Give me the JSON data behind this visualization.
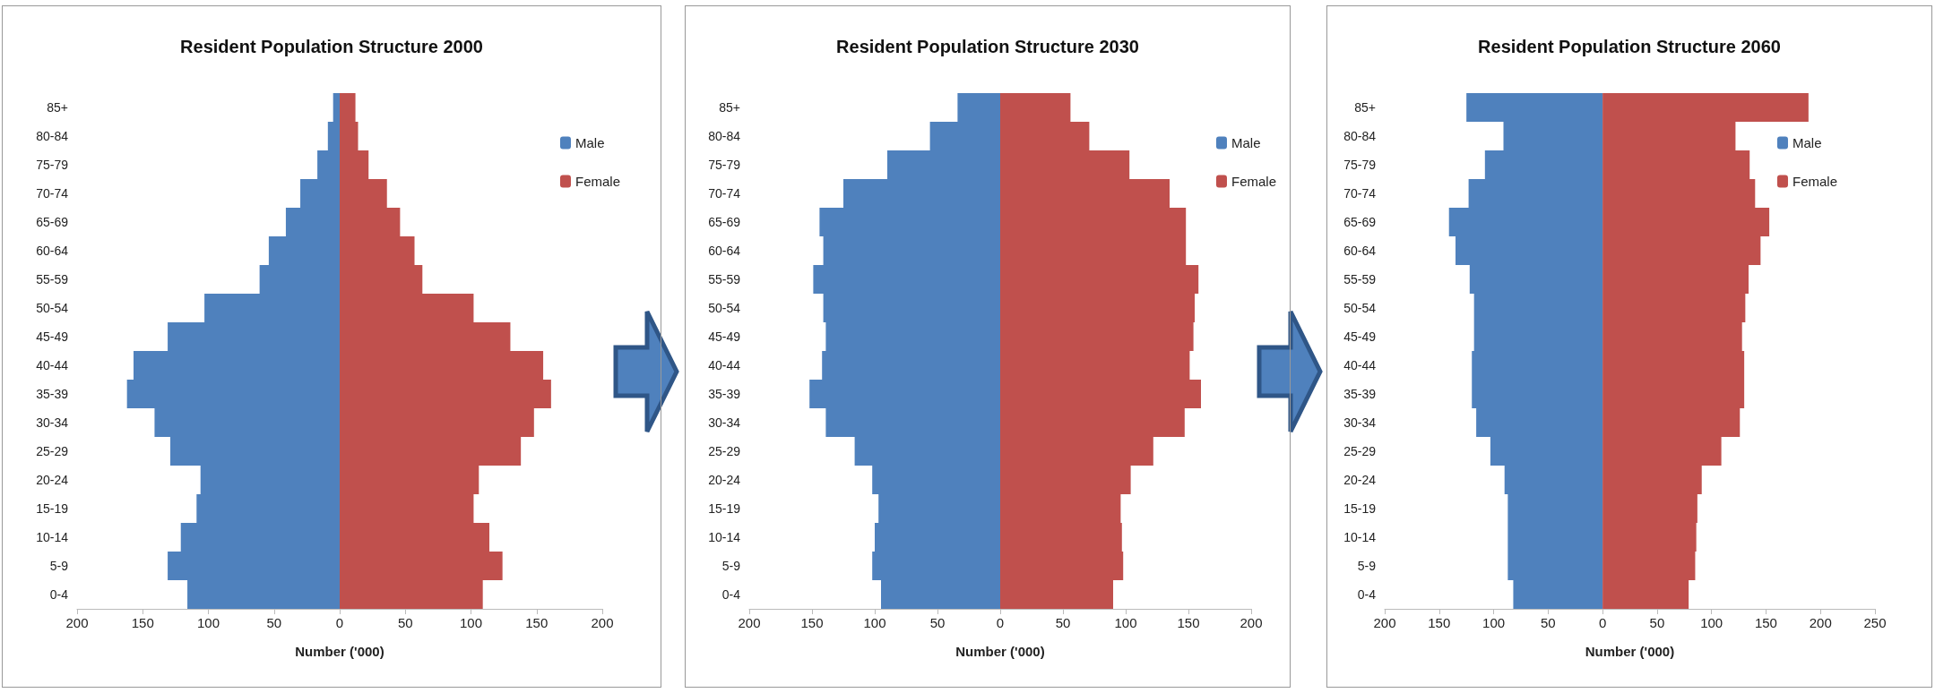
{
  "chart_data": [
    {
      "type": "bar",
      "orientation": "horizontal",
      "stacked": true,
      "title": "Resident Population Structure 2000",
      "xlabel": "Number ('000)",
      "legend": "right",
      "categories": [
        "85+",
        "80-84",
        "75-79",
        "70-74",
        "65-69",
        "60-64",
        "55-59",
        "50-54",
        "45-49",
        "40-44",
        "35-39",
        "30-34",
        "25-29",
        "20-24",
        "15-19",
        "10-14",
        "5-9",
        "0-4"
      ],
      "series": [
        {
          "name": "Male",
          "color": "#4f81bd",
          "values": [
            -5,
            -9,
            -17,
            -30,
            -41,
            -54,
            -61,
            -103,
            -131,
            -157,
            -162,
            -141,
            -129,
            -106,
            -109,
            -121,
            -131,
            -116
          ]
        },
        {
          "name": "Female",
          "color": "#c0504d",
          "values": [
            12,
            14,
            22,
            36,
            46,
            57,
            63,
            102,
            130,
            155,
            161,
            148,
            138,
            106,
            102,
            114,
            124,
            109
          ]
        }
      ],
      "xlim": [
        -200,
        200
      ],
      "xticks": [
        {
          "value": -200,
          "label": "200"
        },
        {
          "value": -150,
          "label": "150"
        },
        {
          "value": -100,
          "label": "100"
        },
        {
          "value": -50,
          "label": "50"
        },
        0,
        50,
        100,
        150,
        200
      ]
    },
    {
      "type": "bar",
      "orientation": "horizontal",
      "stacked": true,
      "title": "Resident Population Structure 2030",
      "xlabel": "Number ('000)",
      "legend": "right",
      "categories": [
        "85+",
        "80-84",
        "75-79",
        "70-74",
        "65-69",
        "60-64",
        "55-59",
        "50-54",
        "45-49",
        "40-44",
        "35-39",
        "30-34",
        "25-29",
        "20-24",
        "15-19",
        "10-14",
        "5-9",
        "0-4"
      ],
      "series": [
        {
          "name": "Male",
          "color": "#4f81bd",
          "values": [
            -34,
            -56,
            -90,
            -125,
            -144,
            -141,
            -149,
            -141,
            -139,
            -142,
            -152,
            -139,
            -116,
            -102,
            -97,
            -100,
            -102,
            -95
          ]
        },
        {
          "name": "Female",
          "color": "#c0504d",
          "values": [
            56,
            71,
            103,
            135,
            148,
            148,
            158,
            155,
            154,
            151,
            160,
            147,
            122,
            104,
            96,
            97,
            98,
            90
          ]
        }
      ],
      "xlim": [
        -200,
        200
      ],
      "xticks": [
        {
          "value": -200,
          "label": "200"
        },
        {
          "value": -150,
          "label": "150"
        },
        {
          "value": -100,
          "label": "100"
        },
        {
          "value": -50,
          "label": "50"
        },
        0,
        50,
        100,
        150,
        200
      ]
    },
    {
      "type": "bar",
      "orientation": "horizontal",
      "stacked": true,
      "title": "Resident Population Structure 2060",
      "xlabel": "Number ('000)",
      "legend": "right",
      "categories": [
        "85+",
        "80-84",
        "75-79",
        "70-74",
        "65-69",
        "60-64",
        "55-59",
        "50-54",
        "45-49",
        "40-44",
        "35-39",
        "30-34",
        "25-29",
        "20-24",
        "15-19",
        "10-14",
        "5-9",
        "0-4"
      ],
      "series": [
        {
          "name": "Male",
          "color": "#4f81bd",
          "values": [
            -125,
            -91,
            -108,
            -123,
            -141,
            -135,
            -122,
            -118,
            -118,
            -120,
            -120,
            -116,
            -103,
            -90,
            -87,
            -87,
            -87,
            -82
          ]
        },
        {
          "name": "Female",
          "color": "#c0504d",
          "values": [
            189,
            122,
            135,
            140,
            153,
            145,
            134,
            131,
            128,
            130,
            130,
            126,
            109,
            91,
            87,
            86,
            85,
            79
          ]
        }
      ],
      "xlim": [
        -200,
        250
      ],
      "xticks": [
        {
          "value": -200,
          "label": "200"
        },
        {
          "value": -150,
          "label": "150"
        },
        {
          "value": -100,
          "label": "100"
        },
        {
          "value": -50,
          "label": "50"
        },
        0,
        50,
        100,
        150,
        200,
        250
      ]
    }
  ]
}
